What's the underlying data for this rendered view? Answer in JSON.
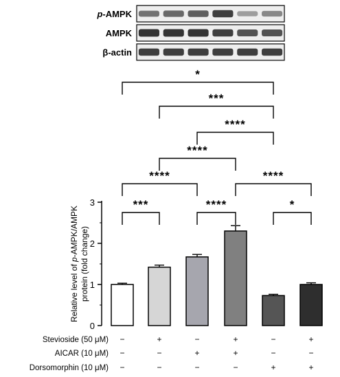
{
  "blot": {
    "rows": [
      {
        "label_prefix": "p",
        "label_suffix": "-AMPK",
        "intensities": [
          0.55,
          0.6,
          0.65,
          0.8,
          0.35,
          0.45
        ]
      },
      {
        "label_prefix": "",
        "label_suffix": "AMPK",
        "intensities": [
          0.85,
          0.85,
          0.85,
          0.8,
          0.7,
          0.7
        ]
      },
      {
        "label_prefix": "",
        "label_suffix": "β-actin",
        "intensities": [
          0.8,
          0.8,
          0.8,
          0.8,
          0.8,
          0.8
        ]
      }
    ]
  },
  "chart_data": {
    "type": "bar",
    "categories": [
      "1",
      "2",
      "3",
      "4",
      "5",
      "6"
    ],
    "values": [
      1.0,
      1.42,
      1.67,
      2.3,
      0.73,
      1.0
    ],
    "errors": [
      0.03,
      0.05,
      0.06,
      0.13,
      0.03,
      0.04
    ],
    "bar_colors": [
      "#ffffff",
      "#d6d6d6",
      "#a6a6ae",
      "#808080",
      "#555555",
      "#2e2e2e"
    ],
    "ylabel_parts": [
      "Relative level of ",
      "p",
      "-AMPK/AMPK",
      "protein (fold change)"
    ],
    "ylim": [
      0,
      3
    ],
    "yticks": [
      "0",
      "1",
      "2",
      "3"
    ],
    "significance": [
      {
        "from": 1,
        "to": 2,
        "label": "***"
      },
      {
        "from": 3,
        "to": 4,
        "label": "****"
      },
      {
        "from": 5,
        "to": 6,
        "label": "*"
      },
      {
        "from": 1,
        "to": 3,
        "label": "****"
      },
      {
        "from": 4,
        "to": 6,
        "label": "****"
      },
      {
        "from": 2,
        "to": 4,
        "label": "****"
      },
      {
        "from": 3,
        "to": 5,
        "label": "****"
      },
      {
        "from": 2,
        "to": 5,
        "label": "***"
      },
      {
        "from": 1,
        "to": 5,
        "label": "*"
      }
    ],
    "conditions": [
      {
        "label": "Stevioside (50 μM)",
        "signs": [
          "−",
          "+",
          "−",
          "+",
          "−",
          "+"
        ]
      },
      {
        "label": "AICAR (10 μM)",
        "signs": [
          "−",
          "−",
          "+",
          "+",
          "−",
          "−"
        ]
      },
      {
        "label": "Dorsomorphin (10 μM)",
        "signs": [
          "−",
          "−",
          "−",
          "−",
          "+",
          "+"
        ]
      }
    ]
  }
}
